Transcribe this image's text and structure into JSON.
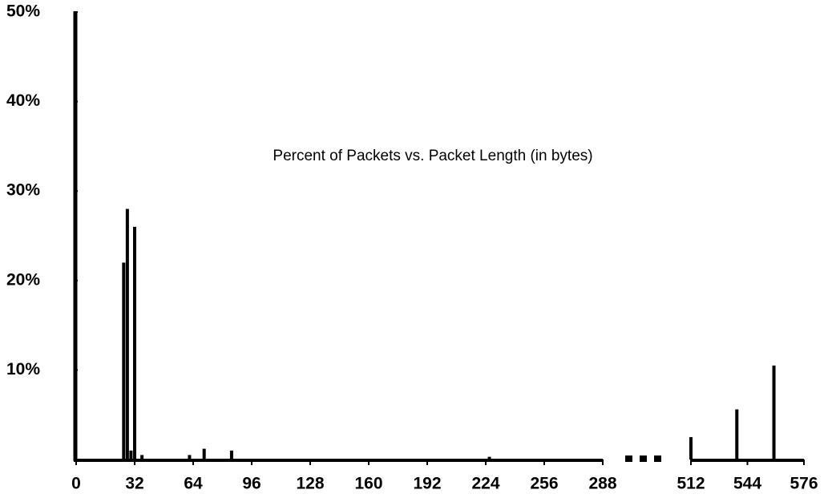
{
  "chart_data": {
    "type": "bar",
    "title": "Percent of Packets vs. Packet Length (in bytes)",
    "x": [
      26,
      28,
      30,
      32,
      36,
      62,
      70,
      85,
      226,
      512,
      538,
      559
    ],
    "values": [
      22,
      28,
      1,
      26,
      0.5,
      0.5,
      1.2,
      1,
      0.3,
      2.5,
      5.6,
      10.5
    ],
    "color": "#000000",
    "ylim": [
      0,
      50
    ],
    "yticks": [
      {
        "value": 10,
        "label": "10%"
      },
      {
        "value": 20,
        "label": "20%"
      },
      {
        "value": 30,
        "label": "30%"
      },
      {
        "value": 40,
        "label": "40%"
      },
      {
        "value": 50,
        "label": "50%"
      }
    ],
    "x_segments": [
      {
        "xlim": [
          0,
          288
        ],
        "xticks": [
          0,
          32,
          64,
          96,
          128,
          160,
          192,
          224,
          256,
          288
        ]
      },
      {
        "xlim": [
          512,
          576
        ],
        "xticks": [
          512,
          544,
          576
        ]
      }
    ]
  }
}
